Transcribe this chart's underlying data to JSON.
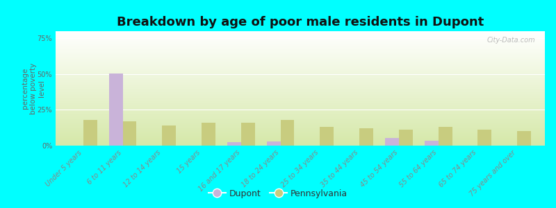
{
  "title": "Breakdown by age of poor male residents in Dupont",
  "categories": [
    "Under 5 years",
    "6 to 11 years",
    "12 to 14 years",
    "15 years",
    "16 and 17 years",
    "18 to 24 years",
    "25 to 34 years",
    "35 to 44 years",
    "45 to 54 years",
    "55 to 64 years",
    "65 to 74 years",
    "75 years and over"
  ],
  "dupont_values": [
    0,
    50.5,
    0,
    0,
    2.5,
    3.0,
    0,
    0,
    5.5,
    3.5,
    0,
    0
  ],
  "pennsylvania_values": [
    18,
    17,
    14,
    16,
    16,
    18,
    13,
    12,
    11,
    13,
    11,
    10
  ],
  "dupont_color": "#c9b3d9",
  "pennsylvania_color": "#c8cc7f",
  "ylabel": "percentage\nbelow poverty\nlevel",
  "ylim": [
    0,
    80
  ],
  "yticks": [
    0,
    25,
    50,
    75
  ],
  "ytick_labels": [
    "0%",
    "25%",
    "50%",
    "75%"
  ],
  "background_color": "#00ffff",
  "plot_bg_top": "#f0f5ee",
  "plot_bg_bottom": "#d6e8a8",
  "watermark": "City-Data.com",
  "title_fontsize": 13,
  "axis_label_fontsize": 7.5,
  "tick_fontsize": 7,
  "legend_fontsize": 9,
  "bar_width": 0.35,
  "gradient_steps": 200
}
